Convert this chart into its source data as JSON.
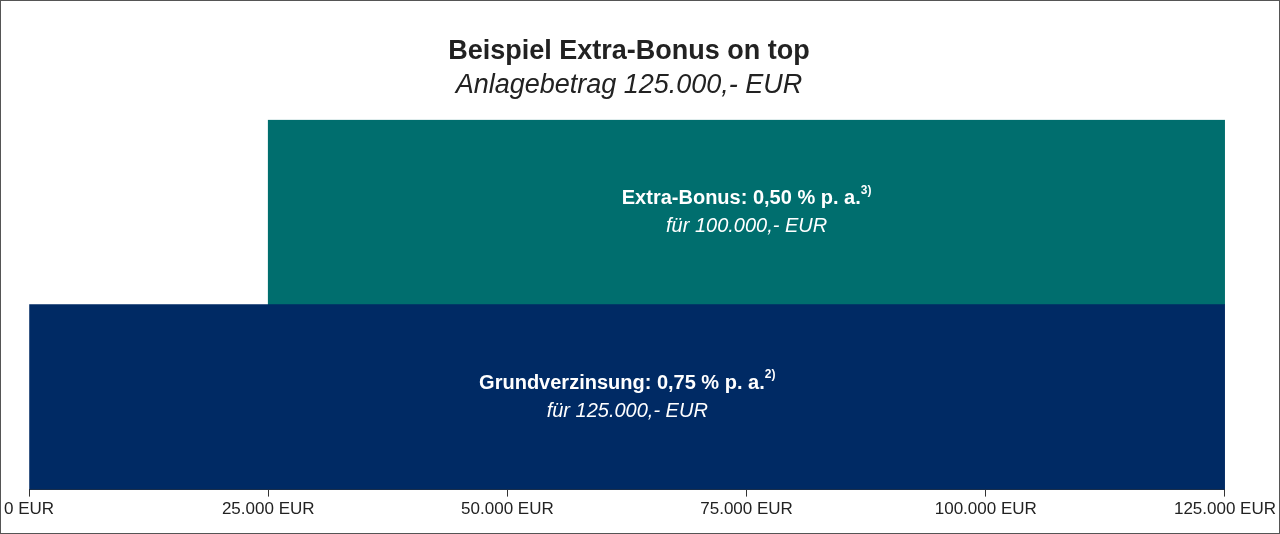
{
  "chart_data": {
    "type": "bar",
    "orientation": "horizontal",
    "title": "Beispiel Extra-Bonus on top",
    "subtitle": "Anlagebetrag 125.000,- EUR",
    "categories": [
      null,
      null
    ],
    "values": [
      100000,
      125000
    ],
    "base": [
      25000,
      0
    ],
    "colors": [
      "#006e6e",
      "#002a64"
    ],
    "value_labels": [
      "Extra-Bonus: 0,50 % p. a.$^{3)}$\nfür 100.000,- EUR",
      "Grundverzinsung: 0,75 % p. a.$^{2)}$\nfür 125.000,- EUR"
    ],
    "xlim": [
      0,
      125000
    ],
    "xticks": [
      {
        "value": 0,
        "label": "0 EUR"
      },
      {
        "value": 25000,
        "label": "25.000 EUR"
      },
      {
        "value": 50000,
        "label": "50.000 EUR"
      },
      {
        "value": 75000,
        "label": "75.000 EUR"
      },
      {
        "value": 100000,
        "label": "100.000 EUR"
      },
      {
        "value": 125000,
        "label": "125.000 EUR"
      }
    ],
    "tick_labels": "x",
    "grid": false,
    "legend": false
  }
}
